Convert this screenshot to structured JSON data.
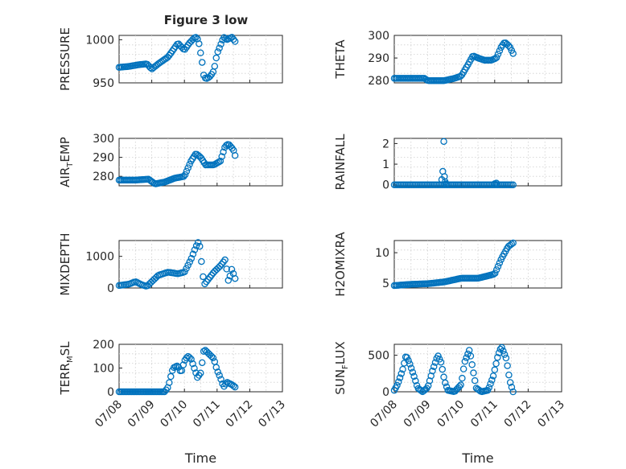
{
  "figure": {
    "title": "Figure 3 low"
  },
  "chart_data": [
    {
      "type": "scatter",
      "ylabel": "PRESSURE",
      "yticks": [
        "950",
        "1000"
      ],
      "ylim": [
        950,
        1005
      ],
      "xlim": [
        0,
        5
      ],
      "show_xticks": false,
      "grid": true,
      "color": "#0072BD",
      "anchors": [
        [
          0,
          968
        ],
        [
          0.3,
          969
        ],
        [
          0.6,
          971
        ],
        [
          0.85,
          972
        ],
        [
          1.0,
          966
        ],
        [
          1.2,
          972
        ],
        [
          1.5,
          980
        ],
        [
          1.65,
          988
        ],
        [
          1.8,
          996
        ],
        [
          2.0,
          988
        ],
        [
          2.15,
          996
        ],
        [
          2.3,
          1002
        ],
        [
          2.38,
          1003
        ],
        [
          2.45,
          995
        ],
        [
          2.55,
          972
        ],
        [
          2.6,
          956
        ],
        [
          2.7,
          955
        ],
        [
          2.8,
          958
        ],
        [
          2.9,
          964
        ],
        [
          3.0,
          984
        ],
        [
          3.1,
          993
        ],
        [
          3.2,
          1003
        ],
        [
          3.3,
          1000
        ],
        [
          3.45,
          1003
        ],
        [
          3.55,
          998
        ]
      ],
      "samples": 75
    },
    {
      "type": "scatter",
      "ylabel": "THETA",
      "yticks": [
        "280",
        "290",
        "300"
      ],
      "ylim": [
        279,
        300
      ],
      "xlim": [
        0,
        5
      ],
      "show_xticks": false,
      "grid": true,
      "color": "#0072BD",
      "anchors": [
        [
          0,
          281
        ],
        [
          0.5,
          281
        ],
        [
          0.9,
          281
        ],
        [
          1.0,
          280
        ],
        [
          1.5,
          280
        ],
        [
          1.8,
          281
        ],
        [
          2.0,
          282
        ],
        [
          2.2,
          287
        ],
        [
          2.35,
          291
        ],
        [
          2.5,
          290
        ],
        [
          2.7,
          289
        ],
        [
          2.9,
          289
        ],
        [
          3.05,
          290
        ],
        [
          3.2,
          295
        ],
        [
          3.3,
          297
        ],
        [
          3.45,
          295
        ],
        [
          3.55,
          292
        ]
      ],
      "samples": 80
    },
    {
      "type": "scatter",
      "ylabel": "AIR_TEMP",
      "yticks": [
        "280",
        "290",
        "300"
      ],
      "ylim": [
        275,
        300
      ],
      "xlim": [
        0,
        5
      ],
      "show_xticks": false,
      "grid": true,
      "color": "#0072BD",
      "anchors": [
        [
          0,
          278
        ],
        [
          0.5,
          278
        ],
        [
          0.9,
          278.5
        ],
        [
          1.1,
          276
        ],
        [
          1.4,
          277
        ],
        [
          1.7,
          279
        ],
        [
          2.0,
          280
        ],
        [
          2.2,
          288
        ],
        [
          2.35,
          292
        ],
        [
          2.5,
          290
        ],
        [
          2.65,
          286
        ],
        [
          2.9,
          286
        ],
        [
          3.1,
          288
        ],
        [
          3.25,
          296
        ],
        [
          3.35,
          297
        ],
        [
          3.5,
          294
        ],
        [
          3.55,
          291
        ]
      ],
      "samples": 80
    },
    {
      "type": "scatter",
      "ylabel": "RAINFALL",
      "yticks": [
        "0",
        "1",
        "2"
      ],
      "ylim": [
        -0.05,
        2.25
      ],
      "xlim": [
        0,
        5
      ],
      "show_xticks": false,
      "grid": true,
      "color": "#0072BD",
      "anchors": [
        [
          0,
          0
        ],
        [
          3.55,
          0
        ]
      ],
      "samples": 70,
      "extra_points": [
        [
          1.48,
          2.1
        ],
        [
          1.45,
          0.65
        ],
        [
          1.5,
          0.4
        ],
        [
          1.52,
          0.15
        ],
        [
          1.42,
          0.25
        ],
        [
          1.55,
          0.05
        ],
        [
          3.0,
          0.05
        ],
        [
          3.05,
          0.08
        ]
      ]
    },
    {
      "type": "scatter",
      "ylabel": "MIXDEPTH",
      "yticks": [
        "0",
        "1000"
      ],
      "ylim": [
        0,
        1500
      ],
      "xlim": [
        0,
        5
      ],
      "show_xticks": false,
      "grid": true,
      "color": "#0072BD",
      "anchors": [
        [
          0,
          80
        ],
        [
          0.3,
          120
        ],
        [
          0.5,
          200
        ],
        [
          0.7,
          100
        ],
        [
          0.85,
          50
        ],
        [
          1.0,
          200
        ],
        [
          1.2,
          400
        ],
        [
          1.5,
          500
        ],
        [
          1.8,
          450
        ],
        [
          2.0,
          500
        ],
        [
          2.2,
          900
        ],
        [
          2.35,
          1300
        ],
        [
          2.45,
          1500
        ],
        [
          2.6,
          100
        ],
        [
          2.75,
          300
        ],
        [
          2.9,
          500
        ],
        [
          3.1,
          700
        ],
        [
          3.25,
          900
        ],
        [
          3.35,
          200
        ],
        [
          3.45,
          600
        ],
        [
          3.55,
          300
        ]
      ],
      "samples": 70
    },
    {
      "type": "scatter",
      "ylabel": "H2OMIXRA",
      "yticks": [
        "5",
        "10"
      ],
      "ylim": [
        4.2,
        12
      ],
      "xlim": [
        0,
        5
      ],
      "show_xticks": false,
      "grid": true,
      "color": "#0072BD",
      "anchors": [
        [
          0,
          4.6
        ],
        [
          0.5,
          4.8
        ],
        [
          1.0,
          4.9
        ],
        [
          1.5,
          5.2
        ],
        [
          2.0,
          5.8
        ],
        [
          2.5,
          5.8
        ],
        [
          2.8,
          6.2
        ],
        [
          3.0,
          6.5
        ],
        [
          3.2,
          9.0
        ],
        [
          3.4,
          11.0
        ],
        [
          3.55,
          11.6
        ]
      ],
      "samples": 80
    },
    {
      "type": "scatter",
      "ylabel": "TERR_MSL",
      "yticks": [
        "0",
        "100",
        "200"
      ],
      "ylim": [
        0,
        200
      ],
      "xlim": [
        0,
        5
      ],
      "show_xticks": true,
      "grid": true,
      "color": "#0072BD",
      "anchors": [
        [
          0,
          0
        ],
        [
          0.5,
          0
        ],
        [
          1.0,
          0
        ],
        [
          1.4,
          0
        ],
        [
          1.5,
          20
        ],
        [
          1.65,
          100
        ],
        [
          1.8,
          110
        ],
        [
          1.9,
          80
        ],
        [
          2.0,
          130
        ],
        [
          2.1,
          150
        ],
        [
          2.2,
          140
        ],
        [
          2.3,
          100
        ],
        [
          2.4,
          60
        ],
        [
          2.5,
          80
        ],
        [
          2.6,
          180
        ],
        [
          2.75,
          160
        ],
        [
          2.9,
          140
        ],
        [
          3.0,
          90
        ],
        [
          3.1,
          60
        ],
        [
          3.2,
          20
        ],
        [
          3.3,
          40
        ],
        [
          3.45,
          30
        ],
        [
          3.55,
          20
        ]
      ],
      "samples": 75,
      "xticks": [
        "07/08",
        "07/09",
        "07/10",
        "07/11",
        "07/12",
        "07/13"
      ],
      "xlabel": "Time"
    },
    {
      "type": "scatter",
      "ylabel": "SUN_FLUX",
      "yticks": [
        "0",
        "500"
      ],
      "ylim": [
        0,
        650
      ],
      "xlim": [
        0,
        5
      ],
      "show_xticks": true,
      "grid": true,
      "color": "#0072BD",
      "anchors": [
        [
          0,
          20
        ],
        [
          0.1,
          100
        ],
        [
          0.25,
          300
        ],
        [
          0.35,
          500
        ],
        [
          0.45,
          400
        ],
        [
          0.6,
          200
        ],
        [
          0.7,
          50
        ],
        [
          0.85,
          0
        ],
        [
          1.0,
          60
        ],
        [
          1.15,
          300
        ],
        [
          1.3,
          500
        ],
        [
          1.4,
          400
        ],
        [
          1.5,
          150
        ],
        [
          1.6,
          20
        ],
        [
          1.8,
          0
        ],
        [
          2.0,
          100
        ],
        [
          2.1,
          400
        ],
        [
          2.25,
          580
        ],
        [
          2.35,
          300
        ],
        [
          2.45,
          50
        ],
        [
          2.6,
          0
        ],
        [
          2.8,
          20
        ],
        [
          2.95,
          200
        ],
        [
          3.1,
          500
        ],
        [
          3.2,
          620
        ],
        [
          3.35,
          450
        ],
        [
          3.45,
          150
        ],
        [
          3.55,
          0
        ]
      ],
      "samples": 85,
      "xticks": [
        "07/08",
        "07/09",
        "07/10",
        "07/11",
        "07/12",
        "07/13"
      ],
      "xlabel": "Time"
    }
  ]
}
